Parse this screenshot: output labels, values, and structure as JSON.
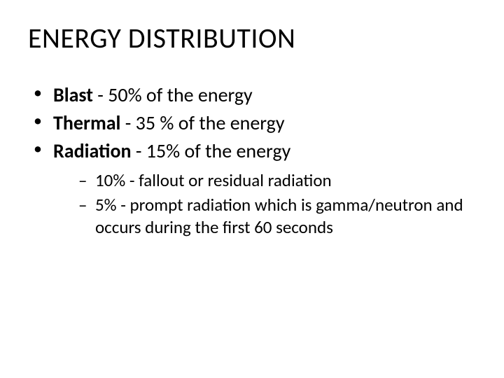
{
  "slide": {
    "title": "ENERGY DISTRIBUTION",
    "type": "infographic",
    "colors": {
      "background": "#ffffff",
      "text": "#000000"
    },
    "typography": {
      "title_fontsize": 40,
      "title_fontweight": 400,
      "bullet_fontsize": 28,
      "subbullet_fontsize": 25,
      "font_family": "Calibri"
    },
    "bullets": [
      {
        "label": "Blast",
        "rest": " -  50% of the energy",
        "percent": 50
      },
      {
        "label": "Thermal",
        "rest": " -  35 % of the energy",
        "percent": 35
      },
      {
        "label": "Radiation",
        "rest": " - 15% of the energy",
        "percent": 15
      }
    ],
    "subbullets": [
      {
        "text": "10% - fallout or residual radiation",
        "percent": 10
      },
      {
        "text": "5% - prompt radiation which is gamma/neutron and occurs during the first 60 seconds",
        "percent": 5
      }
    ]
  }
}
